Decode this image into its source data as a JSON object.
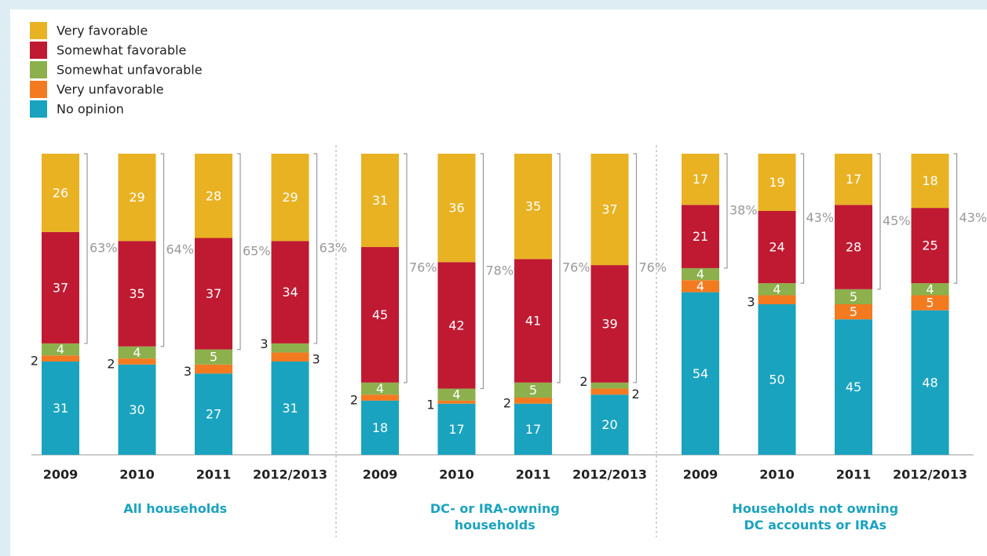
{
  "chart_data": {
    "type": "stacked_bar",
    "groups": [
      {
        "name": "All households",
        "categories": [
          "2009",
          "2010",
          "2011",
          "2012/2013"
        ]
      },
      {
        "name": "DC- or IRA-owning households",
        "categories": [
          "2009",
          "2010",
          "2011",
          "2012/2013"
        ]
      },
      {
        "name": "Households not owning DC accounts or IRAs",
        "categories": [
          "2009",
          "2010",
          "2011",
          "2012/2013"
        ]
      }
    ],
    "series": [
      {
        "name": "Very favorable",
        "color": "#e8b223",
        "values": [
          26,
          29,
          28,
          29,
          31,
          36,
          35,
          37,
          17,
          19,
          17,
          18
        ]
      },
      {
        "name": "Somewhat favorable",
        "color": "#bf1a32",
        "values": [
          37,
          35,
          37,
          34,
          45,
          42,
          41,
          39,
          21,
          24,
          28,
          25
        ]
      },
      {
        "name": "Somewhat unfavorable",
        "color": "#8db04c",
        "values": [
          4,
          4,
          5,
          3,
          4,
          4,
          5,
          2,
          4,
          4,
          5,
          4
        ]
      },
      {
        "name": "Very unfavorable",
        "color": "#f47a20",
        "values": [
          2,
          2,
          3,
          3,
          2,
          1,
          2,
          2,
          4,
          3,
          5,
          5
        ]
      },
      {
        "name": "No opinion",
        "color": "#1aa3bf",
        "values": [
          31,
          30,
          27,
          31,
          18,
          17,
          17,
          20,
          54,
          50,
          45,
          48
        ]
      }
    ],
    "favorable_totals": {
      "values": [
        63,
        64,
        65,
        63,
        76,
        78,
        76,
        76,
        38,
        43,
        45,
        43
      ],
      "value_labels": [
        "63%",
        "64%",
        "65%",
        "63%",
        "76%",
        "78%",
        "76%",
        "76%",
        "38%",
        "43%",
        "45%",
        "43%"
      ]
    },
    "ylim": [
      0,
      100
    ],
    "grid": false,
    "legend": "top-left"
  }
}
